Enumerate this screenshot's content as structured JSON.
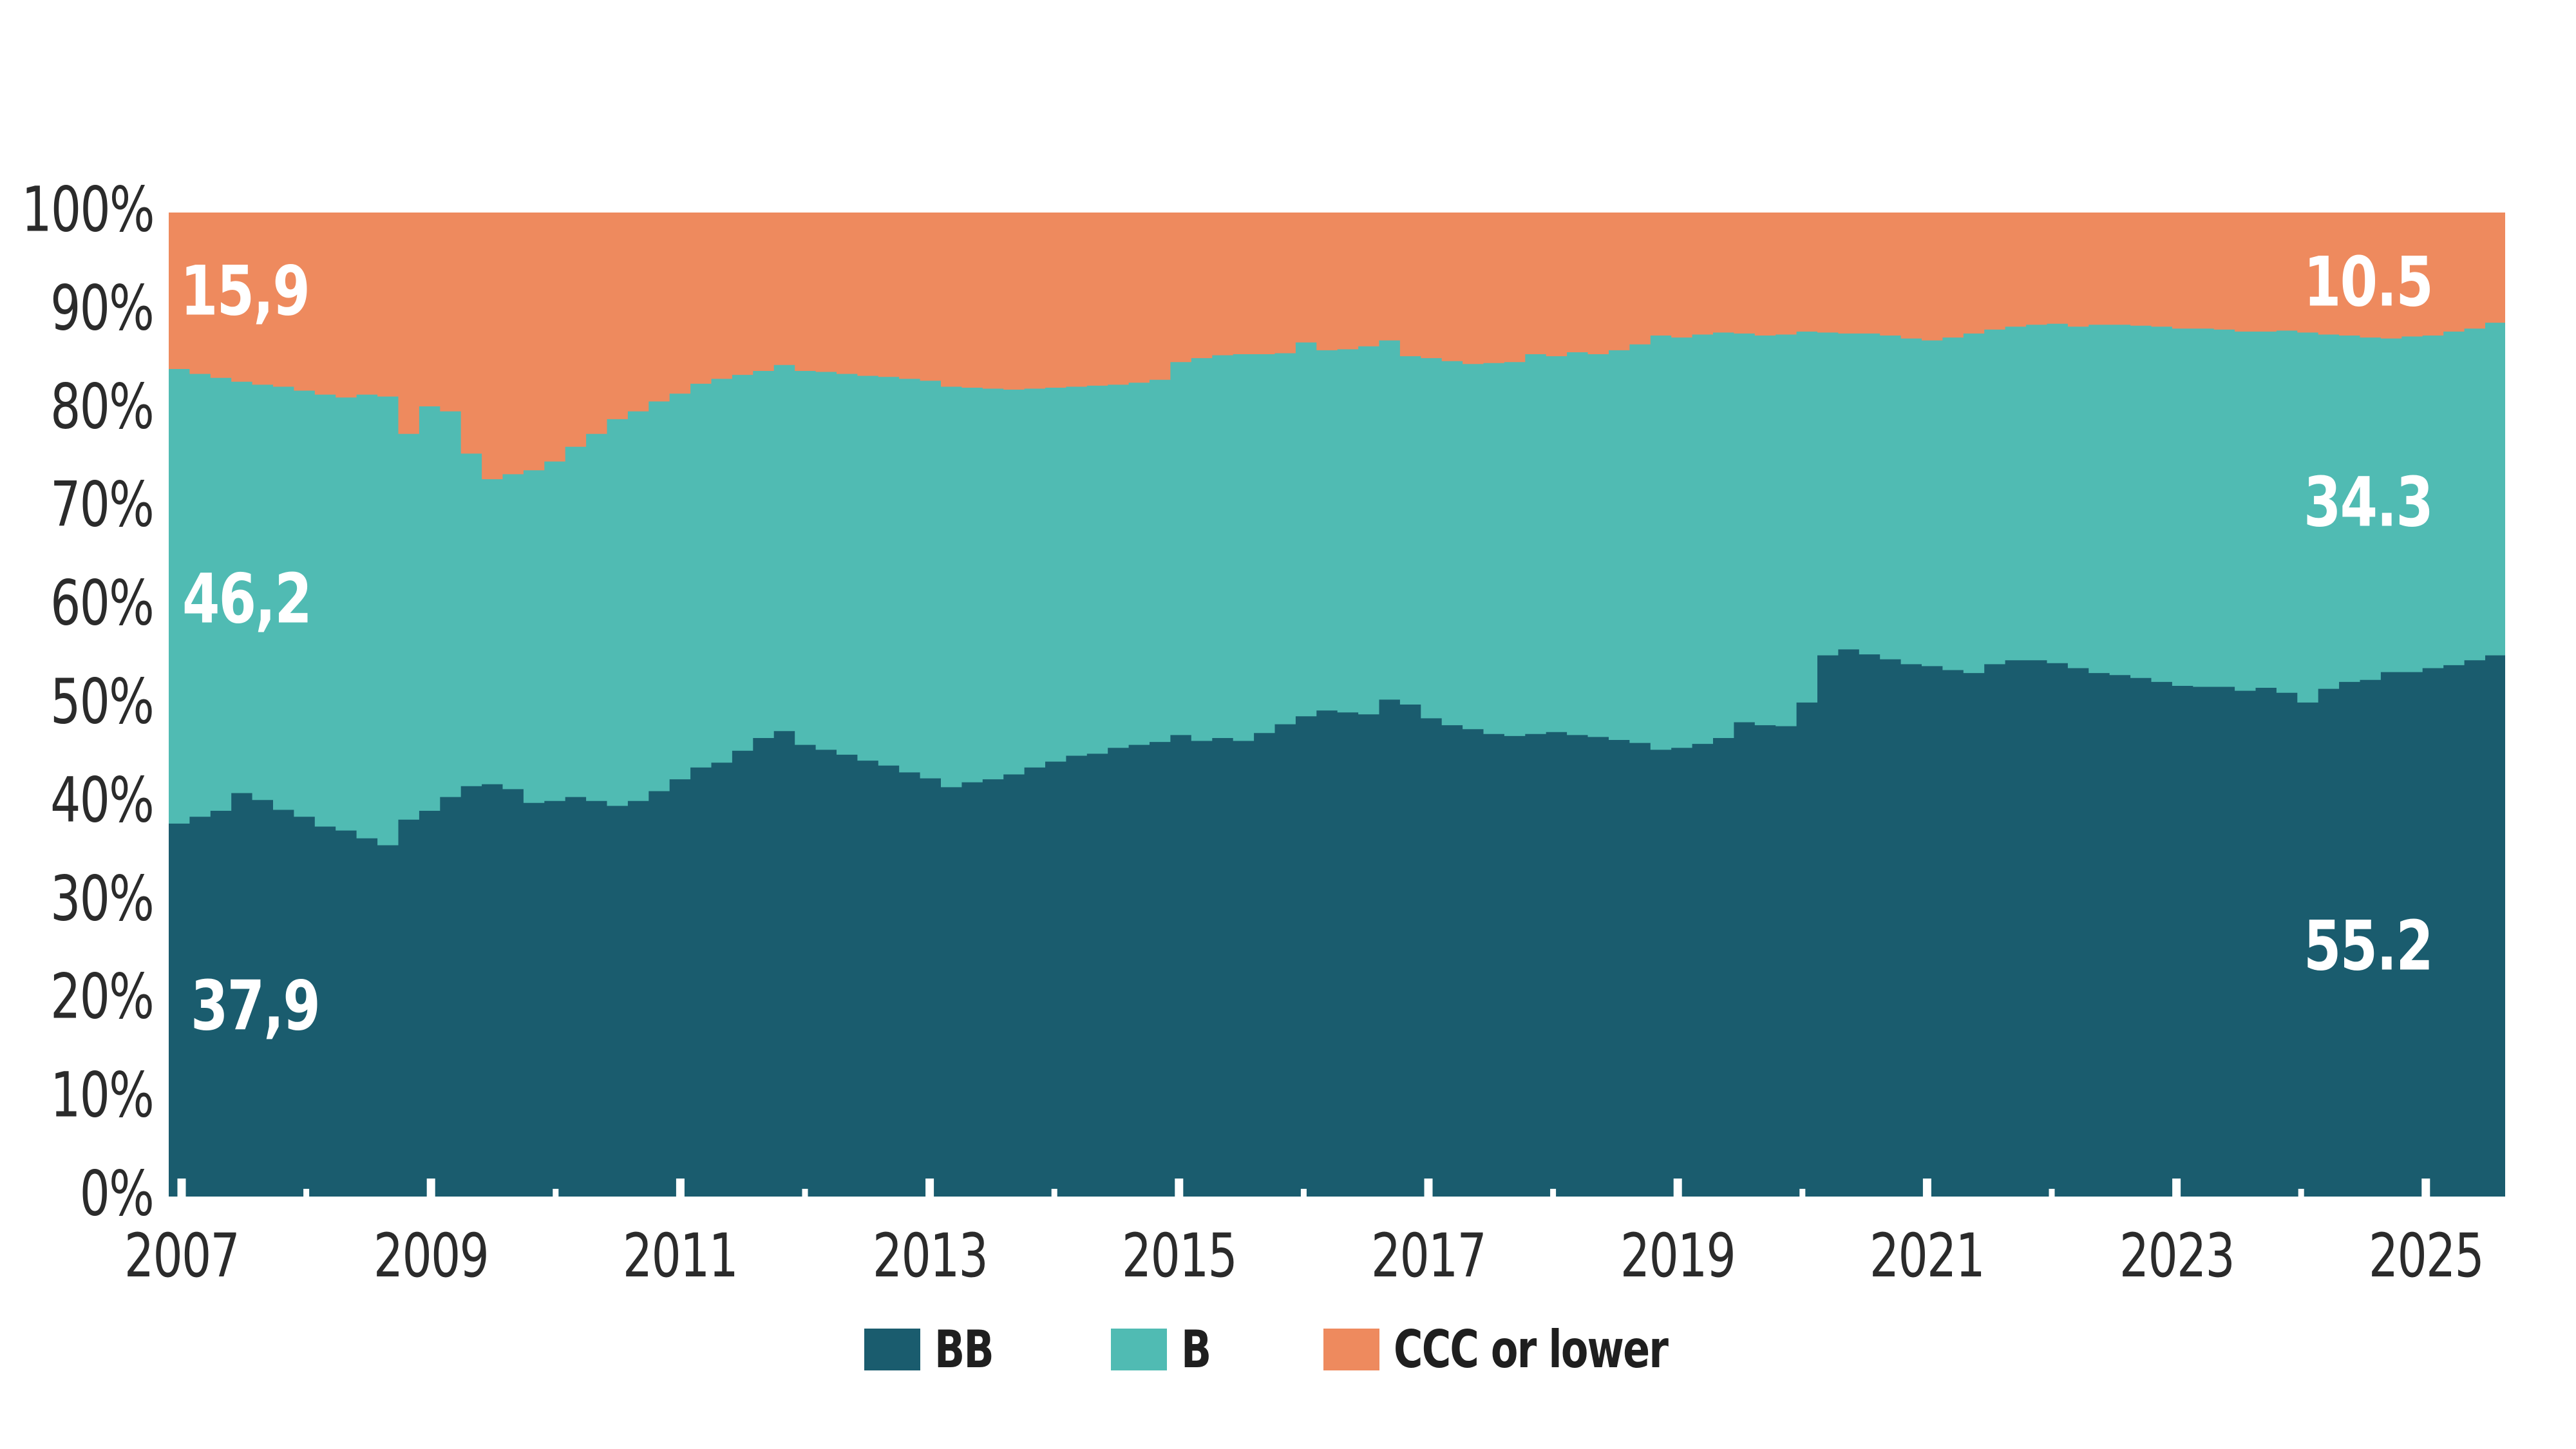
{
  "chart_data": {
    "type": "area",
    "variant": "stacked-100-percent-step",
    "title": "",
    "xlabel": "",
    "ylabel": "",
    "grid": false,
    "legend_position": "bottom-center",
    "background_color": "#ffffff",
    "axis_text_color": "#2b2b2b",
    "x_axis": {
      "start": 2007.0,
      "end": 2025.66,
      "step": 0.16667,
      "labeled_tick_years": [
        2007,
        2009,
        2011,
        2013,
        2015,
        2017,
        2019,
        2021,
        2023,
        2025
      ],
      "minor_tick_years": [
        2008,
        2010,
        2012,
        2014,
        2016,
        2018,
        2020,
        2022,
        2024
      ],
      "tick_labels": [
        "2007",
        "2009",
        "2011",
        "2013",
        "2015",
        "2017",
        "2019",
        "2021",
        "2023",
        "2025"
      ]
    },
    "y_axis": {
      "min": 0,
      "max": 100,
      "tick_step": 10,
      "labels": [
        "100%",
        "90%",
        "80%",
        "70%",
        "60%",
        "50%",
        "40%",
        "30%",
        "20%",
        "10%",
        "0%"
      ]
    },
    "series": [
      {
        "name": "BB",
        "color": "#1A5C6E",
        "values": [
          37.9,
          38.6,
          39.2,
          41.0,
          40.3,
          39.3,
          38.6,
          37.6,
          37.2,
          36.4,
          35.7,
          38.3,
          39.2,
          40.6,
          41.7,
          41.9,
          41.4,
          40.0,
          40.2,
          40.6,
          40.2,
          39.7,
          40.2,
          41.2,
          42.4,
          43.6,
          44.1,
          45.3,
          46.6,
          47.3,
          45.9,
          45.4,
          44.9,
          44.3,
          43.8,
          43.1,
          42.5,
          41.6,
          42.1,
          42.4,
          42.9,
          43.6,
          44.2,
          44.8,
          45.0,
          45.6,
          45.9,
          46.2,
          46.9,
          46.3,
          46.6,
          46.3,
          47.1,
          48.0,
          48.8,
          49.4,
          49.2,
          49.0,
          50.5,
          50.0,
          48.6,
          47.9,
          47.5,
          47.0,
          46.8,
          47.0,
          47.2,
          46.9,
          46.7,
          46.4,
          46.1,
          45.4,
          45.6,
          46.0,
          46.6,
          48.2,
          47.9,
          47.8,
          50.2,
          55.0,
          55.6,
          55.1,
          54.6,
          54.1,
          53.9,
          53.5,
          53.2,
          54.1,
          54.5,
          54.5,
          54.2,
          53.7,
          53.2,
          53.0,
          52.7,
          52.3,
          51.9,
          51.8,
          51.8,
          51.4,
          51.7,
          51.2,
          50.2,
          51.6,
          52.3,
          52.5,
          53.3,
          53.3,
          53.7,
          54.0,
          54.5,
          55.0,
          55.2
        ]
      },
      {
        "name": "B",
        "color": "#50BBB3",
        "values": [
          46.2,
          45.0,
          44.0,
          41.8,
          42.2,
          43.0,
          43.3,
          43.9,
          44.0,
          45.1,
          45.6,
          39.2,
          41.1,
          39.2,
          33.8,
          31.0,
          32.0,
          33.8,
          34.5,
          35.6,
          37.3,
          39.3,
          39.6,
          39.6,
          39.2,
          39.0,
          39.0,
          38.2,
          37.3,
          37.2,
          38.0,
          38.4,
          38.7,
          39.1,
          39.5,
          40.0,
          40.4,
          40.7,
          40.1,
          39.7,
          39.1,
          38.5,
          38.0,
          37.5,
          37.4,
          36.9,
          36.8,
          36.8,
          37.9,
          38.9,
          38.9,
          39.3,
          38.5,
          37.7,
          38.0,
          36.6,
          36.9,
          37.4,
          36.5,
          35.4,
          36.6,
          37.0,
          37.1,
          37.7,
          38.0,
          38.6,
          38.2,
          38.9,
          38.9,
          39.6,
          40.5,
          42.1,
          41.7,
          41.6,
          41.2,
          39.5,
          39.6,
          39.8,
          37.7,
          32.8,
          32.1,
          32.6,
          32.9,
          33.1,
          33.1,
          33.8,
          34.5,
          34.0,
          33.9,
          34.1,
          34.5,
          34.7,
          35.4,
          35.6,
          35.8,
          36.1,
          36.3,
          36.4,
          36.3,
          36.5,
          36.2,
          36.8,
          37.6,
          36.0,
          35.2,
          34.8,
          33.9,
          34.1,
          33.8,
          33.9,
          33.7,
          33.8,
          34.3
        ]
      },
      {
        "name": "CCC or lower",
        "color": "#EE8A5E",
        "values": [
          15.9,
          16.4,
          16.8,
          17.2,
          17.5,
          17.7,
          18.1,
          18.5,
          18.8,
          18.5,
          18.7,
          22.5,
          19.7,
          20.2,
          24.5,
          27.1,
          26.6,
          26.2,
          25.3,
          23.8,
          22.5,
          21.0,
          20.2,
          19.2,
          18.4,
          17.4,
          16.9,
          16.5,
          16.1,
          15.5,
          16.1,
          16.2,
          16.4,
          16.6,
          16.7,
          16.9,
          17.1,
          17.7,
          17.8,
          17.9,
          18.0,
          17.9,
          17.8,
          17.7,
          17.6,
          17.5,
          17.3,
          17.0,
          15.2,
          14.8,
          14.5,
          14.4,
          14.4,
          14.3,
          13.2,
          14.0,
          13.9,
          13.6,
          13.0,
          14.6,
          14.8,
          15.1,
          15.4,
          15.3,
          15.2,
          14.4,
          14.6,
          14.2,
          14.4,
          14.0,
          13.4,
          12.5,
          12.7,
          12.4,
          12.2,
          12.3,
          12.5,
          12.4,
          12.1,
          12.2,
          12.3,
          12.3,
          12.5,
          12.8,
          13.0,
          12.7,
          12.3,
          11.9,
          11.6,
          11.4,
          11.3,
          11.6,
          11.4,
          11.4,
          11.5,
          11.6,
          11.8,
          11.8,
          11.9,
          12.1,
          12.1,
          12.0,
          12.2,
          12.4,
          12.5,
          12.7,
          12.8,
          12.6,
          12.5,
          12.1,
          11.8,
          11.2,
          10.5
        ]
      }
    ],
    "annotations": {
      "start_labels": [
        {
          "series": "CCC or lower",
          "text": "15,9"
        },
        {
          "series": "B",
          "text": "46,2"
        },
        {
          "series": "BB",
          "text": "37,9"
        }
      ],
      "end_labels": [
        {
          "series": "CCC or lower",
          "text": "10.5"
        },
        {
          "series": "B",
          "text": "34.3"
        },
        {
          "series": "BB",
          "text": "55.2"
        }
      ]
    },
    "legend": [
      "BB",
      "B",
      "CCC or lower"
    ]
  }
}
